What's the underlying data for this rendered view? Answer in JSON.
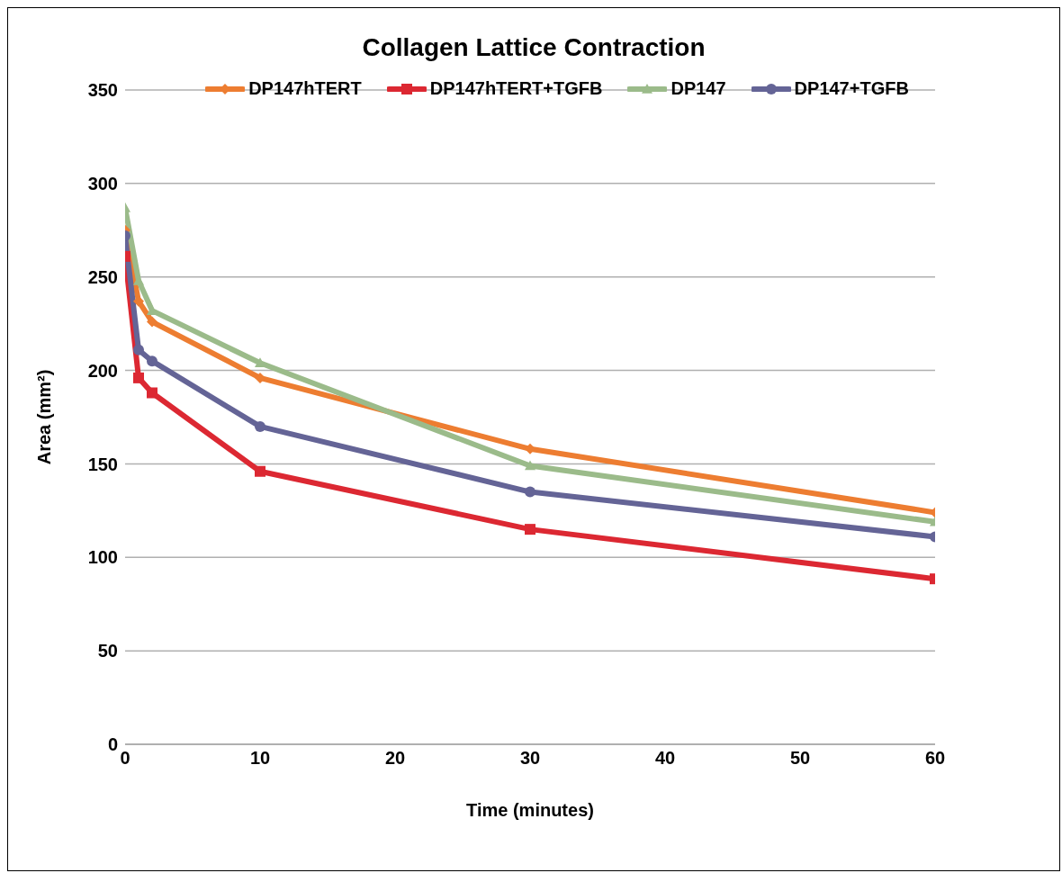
{
  "chart_data": {
    "type": "line",
    "title": "Collagen Lattice Contraction",
    "xlabel": "Time (minutes)",
    "ylabel": "Area (mm²)",
    "x": [
      0,
      1,
      2,
      10,
      30,
      60
    ],
    "xlim": [
      0,
      60
    ],
    "xticks": [
      0,
      10,
      20,
      30,
      40,
      50,
      60
    ],
    "ylim": [
      0,
      350
    ],
    "yticks": [
      0,
      50,
      100,
      150,
      200,
      250,
      300,
      350
    ],
    "grid": "y",
    "legend": "top",
    "line_style": "solid",
    "series": [
      {
        "name": "DP147hTERT",
        "color": "#ed7d31",
        "marker": "diamond",
        "values": [
          275,
          237,
          226,
          196,
          158,
          124
        ]
      },
      {
        "name": "DP147hTERT+TGFB",
        "color": "#dc2832",
        "marker": "square",
        "values": [
          261,
          196,
          188,
          146,
          115,
          88.5
        ]
      },
      {
        "name": "DP147",
        "color": "#9bbb8a",
        "marker": "triangle",
        "values": [
          287,
          248,
          232,
          204,
          149,
          119
        ]
      },
      {
        "name": "DP147+TGFB",
        "color": "#646496",
        "marker": "circle",
        "values": [
          272,
          211,
          205,
          170,
          135,
          111
        ]
      }
    ]
  }
}
